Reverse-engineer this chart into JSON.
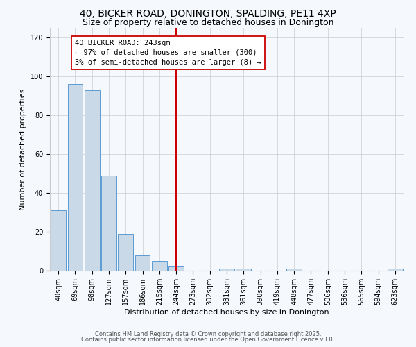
{
  "title": "40, BICKER ROAD, DONINGTON, SPALDING, PE11 4XP",
  "subtitle": "Size of property relative to detached houses in Donington",
  "xlabel": "Distribution of detached houses by size in Donington",
  "ylabel": "Number of detached properties",
  "bar_labels": [
    "40sqm",
    "69sqm",
    "98sqm",
    "127sqm",
    "157sqm",
    "186sqm",
    "215sqm",
    "244sqm",
    "273sqm",
    "302sqm",
    "331sqm",
    "361sqm",
    "390sqm",
    "419sqm",
    "448sqm",
    "477sqm",
    "506sqm",
    "536sqm",
    "565sqm",
    "594sqm",
    "623sqm"
  ],
  "bar_values": [
    31,
    96,
    93,
    49,
    19,
    8,
    5,
    2,
    0,
    0,
    1,
    1,
    0,
    0,
    1,
    0,
    0,
    0,
    0,
    0,
    1
  ],
  "bar_color": "#c9d9e8",
  "bar_edge_color": "#5b9bd5",
  "annotation_line_color": "#cc0000",
  "annotation_box_line1": "40 BICKER ROAD: 243sqm",
  "annotation_box_line2": "← 97% of detached houses are smaller (300)",
  "annotation_box_line3": "3% of semi-detached houses are larger (8) →",
  "ylim": [
    0,
    125
  ],
  "yticks": [
    0,
    20,
    40,
    60,
    80,
    100,
    120
  ],
  "grid_color": "#cccccc",
  "bg_color": "#f5f8fd",
  "footer1": "Contains HM Land Registry data © Crown copyright and database right 2025.",
  "footer2": "Contains public sector information licensed under the Open Government Licence v3.0.",
  "title_fontsize": 10,
  "subtitle_fontsize": 9,
  "annotation_fontsize": 7.5,
  "footer_fontsize": 6,
  "ylabel_fontsize": 8,
  "xlabel_fontsize": 8,
  "tick_fontsize": 7
}
